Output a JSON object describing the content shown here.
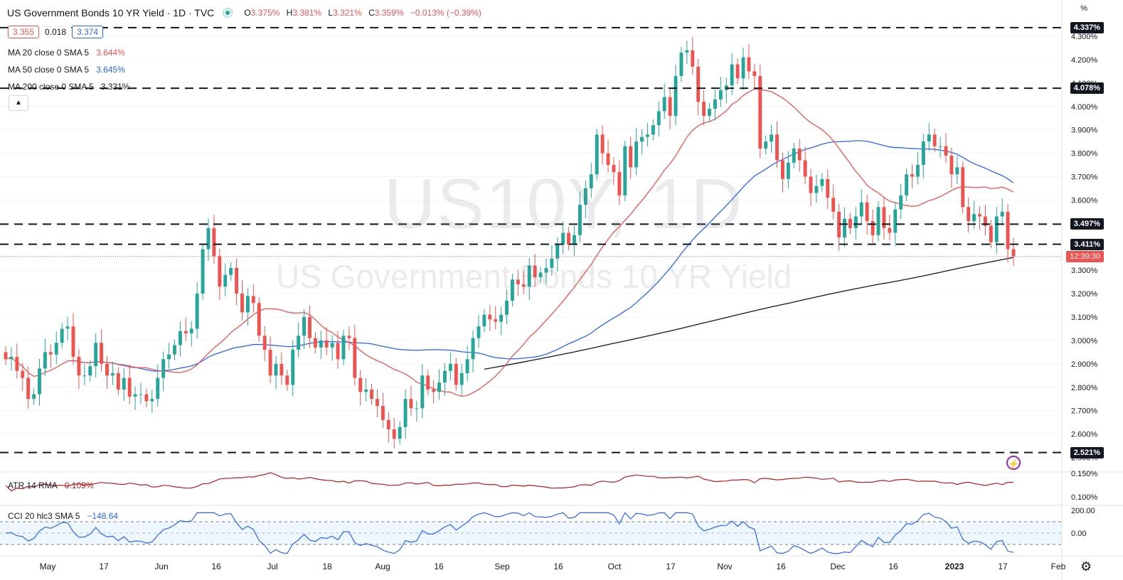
{
  "header": {
    "title": "US Government Bonds 10 YR Yield · 1D · TVC",
    "ohlc": [
      {
        "key": "O",
        "value": "3.375%"
      },
      {
        "key": "H",
        "value": "3.381%"
      },
      {
        "key": "L",
        "value": "3.321%"
      },
      {
        "key": "C",
        "value": "3.359%"
      }
    ],
    "change": "−0.013% (−0.39%)",
    "status_icon": "market-open-dot"
  },
  "pricebox": {
    "sell": "3.355",
    "spread": "0.018",
    "buy": "3.374"
  },
  "indicators": [
    {
      "label": "MA 20 close 0 SMA 5",
      "value": "3.644%",
      "color": "#ef5350"
    },
    {
      "label": "MA 50 close 0 SMA 5",
      "value": "3.645%",
      "color": "#2962ff"
    },
    {
      "label": "MA 200 close 0 SMA 5",
      "value": "3.331%",
      "color": "#131722"
    }
  ],
  "atr": {
    "label": "ATR 14 RMA",
    "value": "0.109%",
    "color": "#b71c1c"
  },
  "cci": {
    "label": "CCI 20 hlc3 SMA 5",
    "value": "−148.64",
    "color": "#2962ff"
  },
  "watermark": {
    "symbol": "US10Y, 1D",
    "description": "US Government Bonds 10 YR Yield"
  },
  "axis": {
    "unit": "%",
    "price_ticks": [
      "4.300%",
      "4.200%",
      "4.100%",
      "4.000%",
      "3.900%",
      "3.800%",
      "3.700%",
      "3.600%",
      "3.500%",
      "3.400%",
      "3.300%",
      "3.200%",
      "3.100%",
      "3.000%",
      "2.900%",
      "2.800%",
      "2.700%",
      "2.600%",
      "2.500%"
    ],
    "atr_ticks": [
      "0.150%",
      "0.100%"
    ],
    "cci_ticks": [
      "200.00",
      "0.00"
    ],
    "time_ticks": [
      "May",
      "17",
      "Jun",
      "16",
      "Jul",
      "18",
      "Aug",
      "16",
      "Sep",
      "16",
      "Oct",
      "17",
      "Nov",
      "16",
      "Dec",
      "16",
      "2023",
      "17",
      "Feb"
    ]
  },
  "levels": [
    {
      "label": "4.337%",
      "value": 4.337
    },
    {
      "label": "4.078%",
      "value": 4.078
    },
    {
      "label": "3.497%",
      "value": 3.497
    },
    {
      "label": "3.411%",
      "value": 3.411
    },
    {
      "label": "2.521%",
      "value": 2.521
    }
  ],
  "countdown": "12:39:30",
  "current_price": 3.359,
  "colors": {
    "up": "#26a69a",
    "down": "#ef5350",
    "ma20": "#ef5350",
    "ma50": "#2962ff",
    "ma200": "#131722",
    "atr": "#b71c1c",
    "cci": "#2962ff"
  },
  "chart_data": {
    "type": "candlestick",
    "title": "US Government Bonds 10 YR Yield · 1D · TVC",
    "ylabel": "%",
    "ylim": [
      2.45,
      4.37
    ],
    "closes": [
      2.92,
      2.93,
      2.87,
      2.84,
      2.75,
      2.77,
      2.88,
      2.95,
      2.94,
      2.99,
      3.05,
      3.06,
      2.93,
      2.85,
      2.85,
      2.89,
      2.99,
      2.9,
      2.85,
      2.86,
      2.79,
      2.84,
      2.76,
      2.77,
      2.77,
      2.74,
      2.75,
      2.84,
      2.92,
      2.94,
      2.98,
      3.04,
      3.03,
      3.05,
      3.2,
      3.39,
      3.48,
      3.36,
      3.23,
      3.28,
      3.31,
      3.2,
      3.12,
      3.19,
      3.16,
      3.02,
      2.96,
      2.85,
      2.9,
      2.85,
      2.81,
      2.96,
      3.02,
      3.1,
      3.01,
      2.97,
      3.0,
      2.97,
      2.99,
      2.92,
      3.02,
      3.01,
      2.84,
      2.78,
      2.79,
      2.75,
      2.72,
      2.66,
      2.62,
      2.58,
      2.63,
      2.75,
      2.71,
      2.71,
      2.85,
      2.79,
      2.78,
      2.82,
      2.87,
      2.9,
      2.81,
      2.86,
      2.92,
      3.01,
      3.06,
      3.11,
      3.09,
      3.08,
      3.11,
      3.17,
      3.26,
      3.24,
      3.23,
      3.32,
      3.27,
      3.29,
      3.31,
      3.35,
      3.41,
      3.46,
      3.41,
      3.45,
      3.58,
      3.65,
      3.71,
      3.88,
      3.8,
      3.75,
      3.72,
      3.62,
      3.83,
      3.74,
      3.85,
      3.87,
      3.88,
      3.92,
      3.98,
      4.04,
      3.96,
      4.13,
      4.23,
      4.24,
      4.17,
      4.02,
      3.96,
      3.99,
      4.03,
      4.07,
      4.09,
      4.18,
      4.12,
      4.21,
      4.15,
      4.13,
      3.82,
      3.85,
      3.88,
      3.77,
      3.69,
      3.76,
      3.82,
      3.77,
      3.7,
      3.63,
      3.66,
      3.69,
      3.61,
      3.55,
      3.44,
      3.52,
      3.48,
      3.53,
      3.59,
      3.51,
      3.45,
      3.57,
      3.48,
      3.46,
      3.56,
      3.62,
      3.71,
      3.7,
      3.75,
      3.85,
      3.88,
      3.83,
      3.83,
      3.79,
      3.71,
      3.74,
      3.57,
      3.51,
      3.54,
      3.53,
      3.49,
      3.42,
      3.53,
      3.55,
      3.39,
      3.36
    ],
    "series": [
      {
        "name": "MA 20 close 0 SMA 5",
        "last": 3.644
      },
      {
        "name": "MA 50 close 0 SMA 5",
        "last": 3.645
      },
      {
        "name": "MA 200 close 0 SMA 5",
        "last": 3.331
      }
    ],
    "horizontal_levels": [
      4.337,
      4.078,
      3.497,
      3.411,
      2.521
    ]
  }
}
